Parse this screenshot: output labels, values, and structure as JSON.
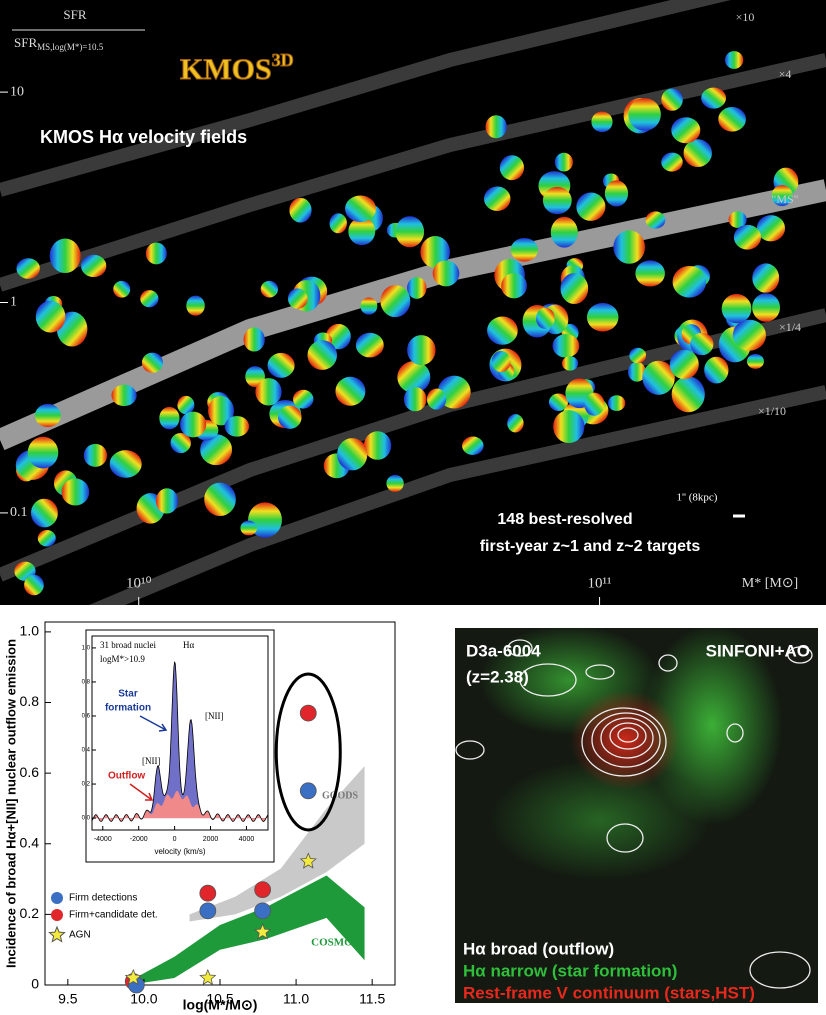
{
  "chart_data": [
    {
      "type": "bands",
      "logo": "KMOS",
      "logo_sup": "3D",
      "y_label_num": "SFR",
      "y_label_den": "SFR",
      "y_label_den_sub": "MS,log(M*)=10.5",
      "title": "KMOS Hα velocity fields",
      "x_label": "M* [M⊙]",
      "band_labels": [
        "×10",
        "×4",
        "\"MS\"",
        "×1/4",
        "×1/10"
      ],
      "annotation_1": "148 best-resolved",
      "annotation_2": "first-year z~1 and z~2 targets",
      "scale_label": "1'' (8kpc)",
      "xlog": true,
      "ylog": true,
      "xlim": [
        5000000000,
        310000000000
      ],
      "ylim": [
        27.4,
        0.0365
      ],
      "xticks": [
        {
          "value": 10000000000,
          "label": "10¹⁰"
        },
        {
          "value": 100000000000,
          "label": "10¹¹"
        }
      ],
      "yticks": [
        10,
        1,
        0.1
      ]
    },
    {
      "type": "scatter",
      "y_label": "Incidence of broad Hα+[NII] nuclear outflow emission",
      "x_label": "log(M*/M⊙)",
      "xlim": [
        9.35,
        11.65
      ],
      "ylim": [
        0,
        1.028
      ],
      "xticks": [
        9.5,
        {
          "value": 10,
          "label": "10.0"
        },
        10.5,
        {
          "value": 11,
          "label": "11.0"
        },
        11.5
      ],
      "yticks": [
        0,
        0.2,
        0.4,
        0.6,
        0.8,
        {
          "value": 1,
          "label": "1.0"
        }
      ],
      "areas": [
        {
          "name": "GOODS",
          "color": "#c9c9c9",
          "x": [
            10.3,
            10.6,
            10.9,
            11.2,
            11.45
          ],
          "upper": [
            0.2,
            0.25,
            0.33,
            0.5,
            0.62
          ],
          "lower": [
            0.18,
            0.2,
            0.25,
            0.32,
            0.4
          ]
        },
        {
          "name": "COSMOS",
          "color": "#1f9a3a",
          "x": [
            9.9,
            10.2,
            10.5,
            10.8,
            11.2,
            11.45
          ],
          "upper": [
            0.01,
            0.08,
            0.17,
            0.22,
            0.31,
            0.22
          ],
          "lower": [
            0,
            0.02,
            0.1,
            0.13,
            0.19,
            0.07
          ]
        }
      ],
      "series": [
        {
          "name": "Firm+candidate det.",
          "color": "#e0262a",
          "marker": "circle",
          "x": [
            9.93,
            10.42,
            10.78,
            11.08
          ],
          "values": [
            0.01,
            0.26,
            0.27,
            0.77
          ]
        },
        {
          "name": "Firm detections",
          "color": "#3a6fc4",
          "marker": "circle",
          "x": [
            9.95,
            10.42,
            10.78,
            11.08
          ],
          "values": [
            0,
            0.21,
            0.21,
            0.55
          ]
        },
        {
          "name": "AGN",
          "color": "#f2ea3c",
          "marker": "star",
          "x": [
            9.93,
            10.42,
            10.78,
            11.08
          ],
          "values": [
            0.02,
            0.02,
            0.15,
            0.35
          ]
        }
      ],
      "inset": {
        "title_1": "31 broad nuclei",
        "title_2": "logM*>10.9",
        "halpha": "Hα",
        "star_formation": [
          "Star",
          "formation"
        ],
        "nii_left": "[NII]",
        "nii_right": "[NII]",
        "outflow": "Outflow",
        "x_label": "velocity (km/s)",
        "xlim": [
          -4600,
          5200
        ],
        "ylim": [
          -0.07,
          1.07
        ],
        "xticks": [
          -4000,
          -2000,
          0,
          2000,
          4000
        ],
        "yticks": [
          {
            "value": 0,
            "label": "0.0"
          },
          {
            "value": 0.2,
            "label": "0.2"
          },
          {
            "value": 0.4,
            "label": "0.4"
          },
          {
            "value": 0.6,
            "label": "0.6"
          },
          {
            "value": 0.8,
            "label": "0.8"
          },
          {
            "value": 1,
            "label": "1.0"
          }
        ]
      }
    }
  ],
  "image_panel": {
    "object": "D3a-6004",
    "redshift": "(z=2.38)",
    "instrument": "SINFONI+AO",
    "legend_white": "Hα broad  (outflow)",
    "legend_green": "Hα narrow (star formation)",
    "legend_red": "Rest-frame V continuum (stars,HST)"
  }
}
